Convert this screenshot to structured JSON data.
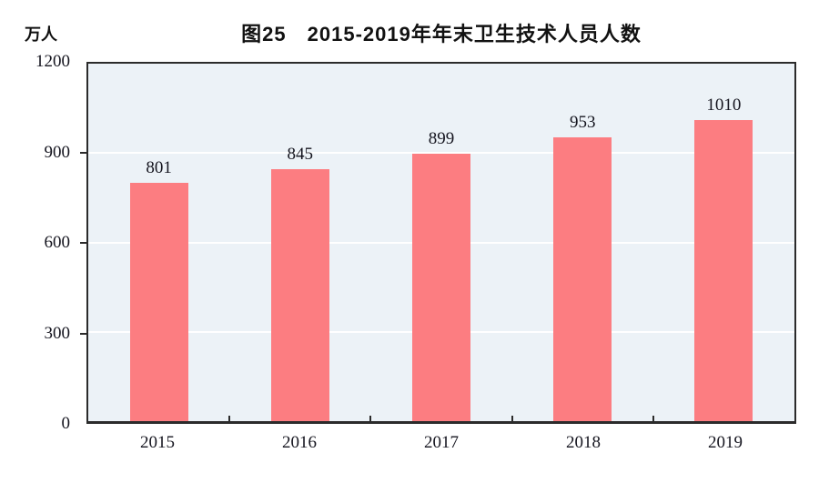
{
  "chart_data": {
    "type": "bar",
    "title": "图25　2015-2019年年末卫生技术人员人数",
    "unit_label": "万人",
    "categories": [
      "2015",
      "2016",
      "2017",
      "2018",
      "2019"
    ],
    "values": [
      801,
      845,
      899,
      953,
      1010
    ],
    "data_labels": [
      "801",
      "845",
      "899",
      "953",
      "1010"
    ],
    "xlabel": "",
    "ylabel": "万人",
    "ylim": [
      0,
      1200
    ],
    "yticks": [
      0,
      300,
      600,
      900,
      1200
    ],
    "gridlines": [
      300,
      600,
      900
    ],
    "grid": true,
    "legend": "none",
    "colors": {
      "bar_fill": "#FC7D81",
      "plot_background": "#ECF2F7",
      "gridline": "#FFFFFF",
      "axis_border": "#2B2B2B",
      "text": "#15151F",
      "title_text": "#111111",
      "page_background": "#FFFFFF"
    }
  }
}
